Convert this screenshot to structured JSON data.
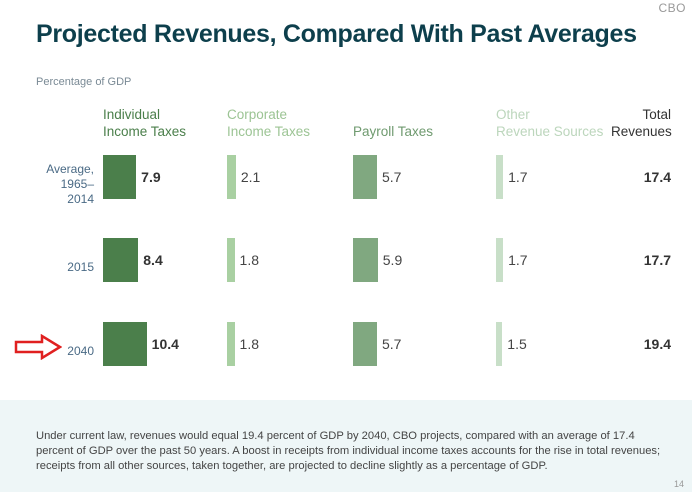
{
  "logo": "CBO",
  "title": "Projected Revenues, Compared With Past Averages",
  "chart_data": {
    "type": "bar",
    "title": "Projected Revenues, Compared With Past Averages",
    "ylabel": "Percentage of GDP",
    "categories": [
      "Average, 1965–2014",
      "2015",
      "2040"
    ],
    "series": [
      {
        "name": "Individual Income Taxes",
        "values": [
          7.9,
          8.4,
          10.4
        ],
        "color": "#4b7f4b"
      },
      {
        "name": "Corporate Income Taxes",
        "values": [
          2.1,
          1.8,
          1.8
        ],
        "color": "#a9d0a2"
      },
      {
        "name": "Payroll Taxes",
        "values": [
          5.7,
          5.9,
          5.7
        ],
        "color": "#80a880"
      },
      {
        "name": "Other Revenue Sources",
        "values": [
          1.7,
          1.7,
          1.5
        ],
        "color": "#c8dfc8"
      }
    ],
    "totals_label": "Total Revenues",
    "totals": [
      17.4,
      17.7,
      19.4
    ],
    "highlight": "2040"
  },
  "headers": [
    {
      "l1": "Individual",
      "l2": "Income Taxes",
      "color": "#4b7f4b"
    },
    {
      "l1": "Corporate",
      "l2": "Income Taxes",
      "color": "#9cc494"
    },
    {
      "l1": "",
      "l2": "Payroll Taxes",
      "color": "#6f9a6f"
    },
    {
      "l1": "Other",
      "l2": "Revenue Sources",
      "color": "#bcd6bc"
    },
    {
      "l1": "Total",
      "l2": "Revenues",
      "color": "#333333"
    }
  ],
  "row_labels": [
    [
      "Average,",
      "1965–2014"
    ],
    [
      "",
      "2015"
    ],
    [
      "",
      "2040"
    ]
  ],
  "note": "Under current law, revenues would equal 19.4 percent of GDP by 2040, CBO projects, compared with an average of 17.4 percent of GDP over the past 50 years. A boost in receipts from individual income taxes accounts for the rise in total revenues; receipts from all other sources, taken together, are projected to decline slightly as a percentage of GDP.",
  "page_number": "14",
  "arrow_color": "#e02020"
}
